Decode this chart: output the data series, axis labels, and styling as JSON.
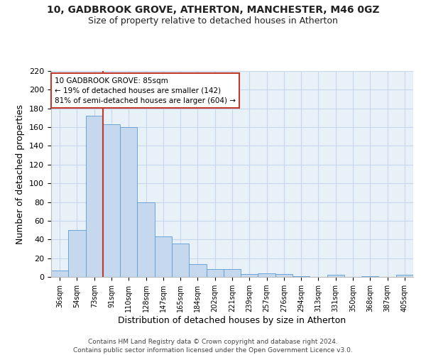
{
  "title": "10, GADBROOK GROVE, ATHERTON, MANCHESTER, M46 0GZ",
  "subtitle": "Size of property relative to detached houses in Atherton",
  "xlabel": "Distribution of detached houses by size in Atherton",
  "ylabel": "Number of detached properties",
  "bin_labels": [
    "36sqm",
    "54sqm",
    "73sqm",
    "91sqm",
    "110sqm",
    "128sqm",
    "147sqm",
    "165sqm",
    "184sqm",
    "202sqm",
    "221sqm",
    "239sqm",
    "257sqm",
    "276sqm",
    "294sqm",
    "313sqm",
    "331sqm",
    "350sqm",
    "368sqm",
    "387sqm",
    "405sqm"
  ],
  "bin_values": [
    7,
    50,
    172,
    163,
    160,
    80,
    43,
    36,
    14,
    8,
    8,
    3,
    4,
    3,
    1,
    0,
    2,
    0,
    1,
    0,
    2
  ],
  "bar_color": "#c5d8ed",
  "bar_edge_color": "#5b9bd5",
  "vline_x_index": 2.5,
  "vline_color": "#c0392b",
  "annotation_line1": "10 GADBROOK GROVE: 85sqm",
  "annotation_line2": "← 19% of detached houses are smaller (142)",
  "annotation_line3": "81% of semi-detached houses are larger (604) →",
  "annotation_box_color": "#c0392b",
  "ylim": [
    0,
    220
  ],
  "yticks": [
    0,
    20,
    40,
    60,
    80,
    100,
    120,
    140,
    160,
    180,
    200,
    220
  ],
  "grid_color": "#c5d8ed",
  "bg_color": "#e8f0f8",
  "footer_line1": "Contains HM Land Registry data © Crown copyright and database right 2024.",
  "footer_line2": "Contains public sector information licensed under the Open Government Licence v3.0."
}
